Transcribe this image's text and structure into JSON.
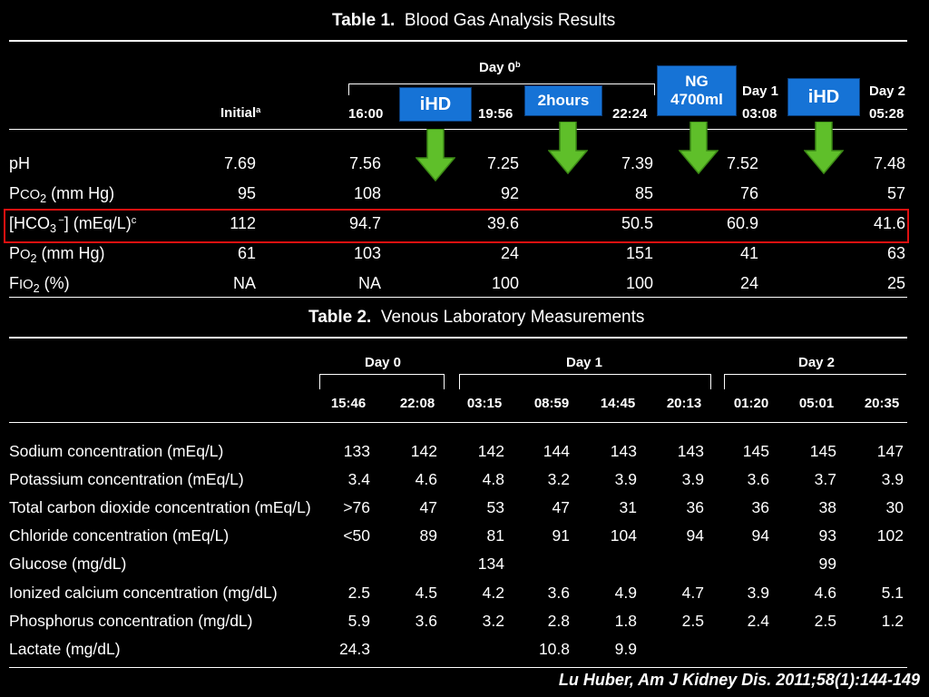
{
  "table1": {
    "title_label": "Table 1.",
    "title_text": "Blood Gas Analysis Results",
    "headers": {
      "initial": "Initial",
      "initial_sup": "a",
      "day0": "Day 0",
      "day0_sup": "b",
      "t1600": "16:00",
      "t1956": "19:56",
      "t2224": "22:24",
      "day1": "Day 1",
      "t0308": "03:08",
      "day2": "Day 2",
      "t0528": "05:28"
    },
    "rows": [
      {
        "label": "pH",
        "values": [
          "7.69",
          "7.56",
          "7.25",
          "7.39",
          "7.52",
          "7.48"
        ]
      },
      {
        "label": "Pco2 (mm Hg)",
        "values": [
          "95",
          "108",
          "92",
          "85",
          "76",
          "57"
        ]
      },
      {
        "label": "[HCO3−] (mEq/L)c",
        "values": [
          "112",
          "94.7",
          "39.6",
          "50.5",
          "60.9",
          "41.6"
        ]
      },
      {
        "label": "Po2 (mm Hg)",
        "values": [
          "61",
          "103",
          "24",
          "151",
          "41",
          "63"
        ]
      },
      {
        "label": "Fio2 (%)",
        "values": [
          "NA",
          "NA",
          "100",
          "100",
          "24",
          "25"
        ]
      }
    ]
  },
  "annotations": {
    "ihd_1": "iHD",
    "hours_2": "2hours",
    "ng_line1": "NG",
    "ng_line2": "4700ml",
    "ihd_2": "iHD",
    "accent_blue": "#1673d6",
    "arrow_green": "#5fbf2a",
    "highlight_red": "#e01010"
  },
  "table2": {
    "title_label": "Table 2.",
    "title_text": "Venous Laboratory Measurements",
    "days": [
      "Day 0",
      "Day 1",
      "Day 2"
    ],
    "times": [
      "15:46",
      "22:08",
      "03:15",
      "08:59",
      "14:45",
      "20:13",
      "01:20",
      "05:01",
      "20:35"
    ],
    "rows": [
      {
        "label": "Sodium concentration (mEq/L)",
        "values": [
          "133",
          "142",
          "142",
          "144",
          "143",
          "143",
          "145",
          "145",
          "147"
        ]
      },
      {
        "label": "Potassium concentration (mEq/L)",
        "values": [
          "3.4",
          "4.6",
          "4.8",
          "3.2",
          "3.9",
          "3.9",
          "3.6",
          "3.7",
          "3.9"
        ]
      },
      {
        "label": "Total carbon dioxide concentration (mEq/L)",
        "values": [
          ">76",
          "47",
          "53",
          "47",
          "31",
          "36",
          "36",
          "38",
          "30"
        ]
      },
      {
        "label": "Chloride concentration (mEq/L)",
        "values": [
          "<50",
          "89",
          "81",
          "91",
          "104",
          "94",
          "94",
          "93",
          "102"
        ]
      },
      {
        "label": "Glucose (mg/dL)",
        "values": [
          "",
          "",
          "134",
          "",
          "",
          "",
          "",
          "99",
          ""
        ]
      },
      {
        "label": "Ionized calcium concentration (mg/dL)",
        "values": [
          "2.5",
          "4.5",
          "4.2",
          "3.6",
          "4.9",
          "4.7",
          "3.9",
          "4.6",
          "5.1"
        ]
      },
      {
        "label": "Phosphorus concentration (mg/dL)",
        "values": [
          "5.9",
          "3.6",
          "3.2",
          "2.8",
          "1.8",
          "2.5",
          "2.4",
          "2.5",
          "1.2"
        ]
      },
      {
        "label": "Lactate (mg/dL)",
        "values": [
          "24.3",
          "",
          "",
          "10.8",
          "9.9",
          "",
          "",
          "",
          ""
        ]
      }
    ]
  },
  "citation": "Lu Huber, Am J Kidney Dis. 2011;58(1):144-149"
}
